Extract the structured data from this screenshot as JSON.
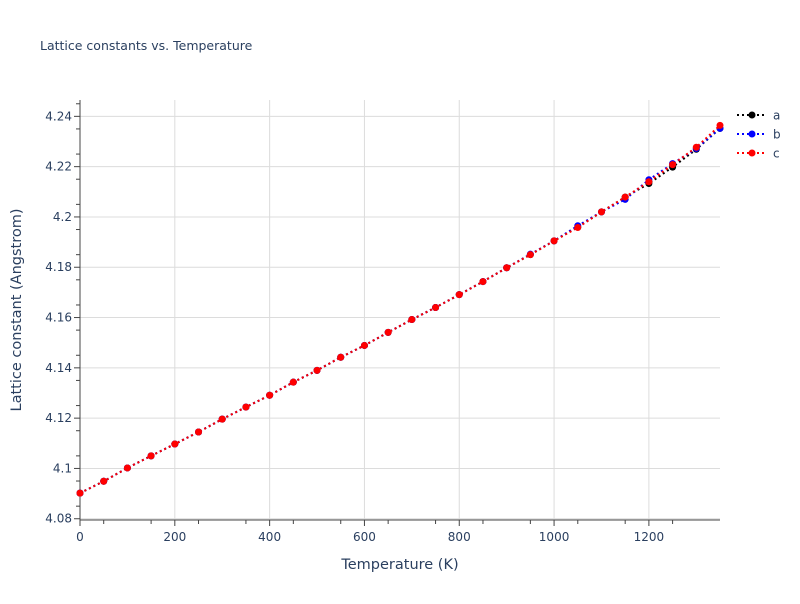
{
  "chart_data": {
    "type": "line",
    "title": "Lattice constants vs. Temperature",
    "xlabel": "Temperature (K)",
    "ylabel": "Lattice constant (Angstrom)",
    "xlim": [
      0,
      1350
    ],
    "ylim": [
      4.0795,
      4.2465
    ],
    "xticks": [
      0,
      200,
      400,
      600,
      800,
      1000,
      1200
    ],
    "yticks": [
      4.08,
      4.1,
      4.12,
      4.14,
      4.16,
      4.18,
      4.2,
      4.22,
      4.24
    ],
    "ytick_labels": [
      "4.08",
      "4.1",
      "4.12",
      "4.14",
      "4.16",
      "4.18",
      "4.2",
      "4.22",
      "4.24"
    ],
    "grid": true,
    "legend_position": "top-right",
    "x": [
      0,
      50,
      100,
      150,
      200,
      250,
      300,
      350,
      400,
      450,
      500,
      550,
      600,
      650,
      700,
      750,
      800,
      850,
      900,
      950,
      1000,
      1050,
      1100,
      1150,
      1200,
      1250,
      1300,
      1350
    ],
    "series": [
      {
        "name": "a",
        "color": "#000000",
        "values": [
          4.0902,
          4.0949,
          4.1002,
          4.105,
          4.1097,
          4.1145,
          4.1196,
          4.1244,
          4.1291,
          4.1343,
          4.139,
          4.1442,
          4.1489,
          4.1541,
          4.1592,
          4.164,
          4.1691,
          4.1743,
          4.1798,
          4.185,
          4.1905,
          4.196,
          4.202,
          4.2079,
          4.2133,
          4.2198,
          4.2269,
          4.2352
        ]
      },
      {
        "name": "b",
        "color": "#0000ff",
        "values": [
          4.0902,
          4.0949,
          4.1002,
          4.105,
          4.1097,
          4.1145,
          4.1196,
          4.1244,
          4.1291,
          4.1343,
          4.139,
          4.1442,
          4.1489,
          4.1541,
          4.1592,
          4.164,
          4.1691,
          4.1743,
          4.1798,
          4.1852,
          4.1905,
          4.1965,
          4.202,
          4.207,
          4.2148,
          4.2212,
          4.2272,
          4.2352
        ]
      },
      {
        "name": "c",
        "color": "#ff0000",
        "values": [
          4.0902,
          4.0949,
          4.1002,
          4.105,
          4.1097,
          4.1145,
          4.1196,
          4.1244,
          4.1291,
          4.1343,
          4.139,
          4.1442,
          4.1489,
          4.1541,
          4.1592,
          4.164,
          4.1691,
          4.1743,
          4.1798,
          4.185,
          4.1905,
          4.1958,
          4.202,
          4.2079,
          4.214,
          4.2208,
          4.2277,
          4.2364
        ]
      }
    ]
  }
}
